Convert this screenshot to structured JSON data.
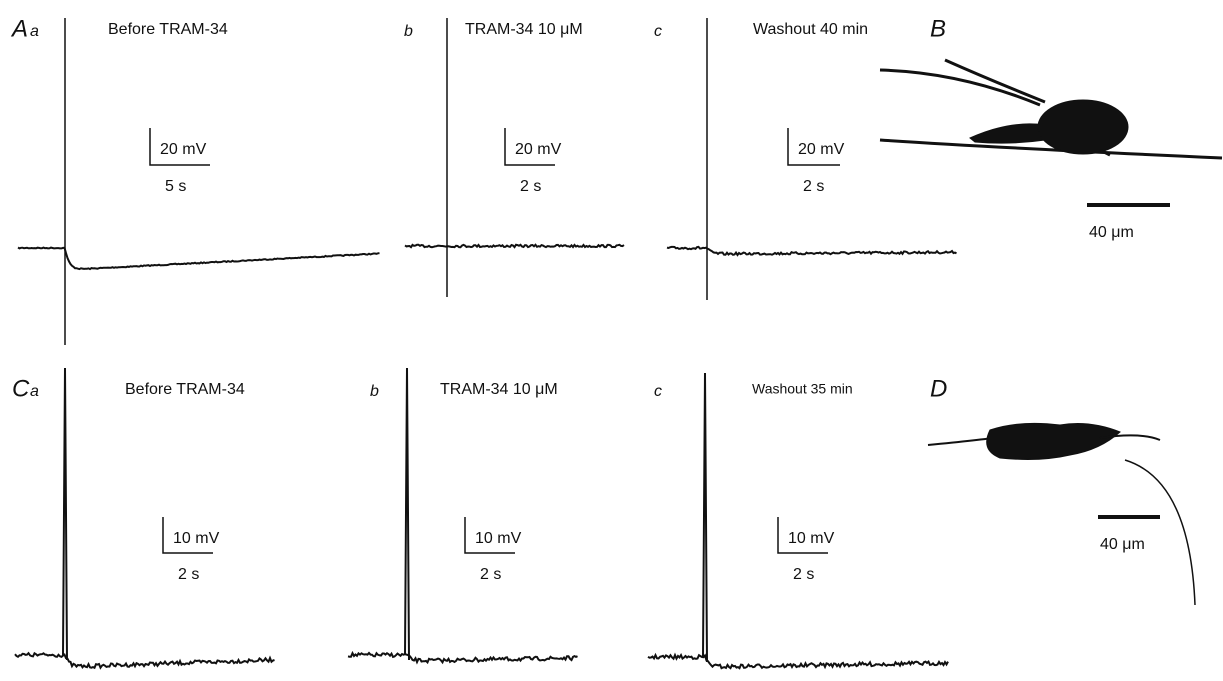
{
  "panels": [
    {
      "letter": "A",
      "sub": "a",
      "title": "Before TRAM-34",
      "v_scale": "20 mV",
      "t_scale": "5 s"
    },
    {
      "sub": "b",
      "title": "TRAM-34 10 μM",
      "v_scale": "20 mV",
      "t_scale": "2 s"
    },
    {
      "sub": "c",
      "title": "Washout 40 min",
      "v_scale": "20 mV",
      "t_scale": "2 s"
    },
    {
      "letter": "C",
      "sub": "a",
      "title": "Before TRAM-34",
      "v_scale": "10 mV",
      "t_scale": "2 s"
    },
    {
      "sub": "b",
      "title": "TRAM-34 10 μM",
      "v_scale": "10 mV",
      "t_scale": "2 s"
    },
    {
      "sub": "c",
      "title": "Washout 35 min",
      "v_scale": "10 mV",
      "t_scale": "2 s"
    }
  ],
  "morphology": [
    {
      "letter": "B",
      "scale": "40 μm"
    },
    {
      "letter": "D",
      "scale": "40 μm"
    }
  ]
}
